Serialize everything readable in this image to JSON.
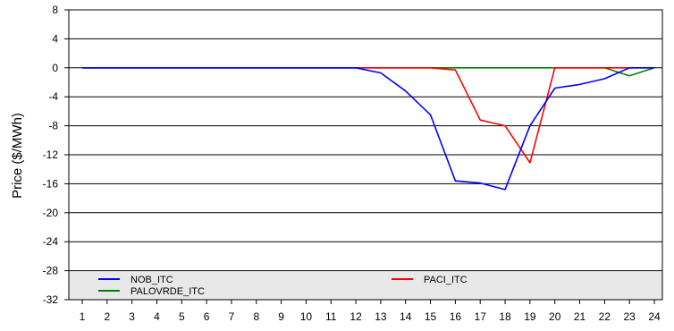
{
  "chart_data": {
    "type": "line",
    "title": "",
    "xlabel": "",
    "ylabel": "Price ($/MWh)",
    "x": [
      1,
      2,
      3,
      4,
      5,
      6,
      7,
      8,
      9,
      10,
      11,
      12,
      13,
      14,
      15,
      16,
      17,
      18,
      19,
      20,
      21,
      22,
      23,
      24
    ],
    "xlim": [
      1,
      24
    ],
    "ylim": [
      -32,
      8
    ],
    "yticks": [
      8,
      4,
      0,
      -4,
      -8,
      -12,
      -16,
      -20,
      -24,
      -28,
      -32
    ],
    "grid": "horizontal",
    "legend_position": "bottom",
    "series": [
      {
        "name": "NOB_ITC",
        "color": "#0000ff",
        "values": [
          0,
          0,
          0,
          0,
          0,
          0,
          0,
          0,
          0,
          0,
          0,
          0,
          -0.7,
          -3.2,
          -6.5,
          -15.6,
          -15.9,
          -16.8,
          -8,
          -2.8,
          -2.3,
          -1.5,
          0,
          0
        ]
      },
      {
        "name": "PACI_ITC",
        "color": "#ff0000",
        "values": [
          0,
          0,
          0,
          0,
          0,
          0,
          0,
          0,
          0,
          0,
          0,
          0,
          0,
          0,
          0,
          -0.3,
          -7.2,
          -8,
          -13.1,
          0,
          0,
          0,
          0,
          0
        ]
      },
      {
        "name": "PALOVRDE_ITC",
        "color": "#008000",
        "values": [
          0,
          0,
          0,
          0,
          0,
          0,
          0,
          0,
          0,
          0,
          0,
          0,
          0,
          0,
          0,
          0,
          0,
          0,
          0,
          0,
          0,
          0,
          -1.1,
          0
        ]
      }
    ]
  }
}
